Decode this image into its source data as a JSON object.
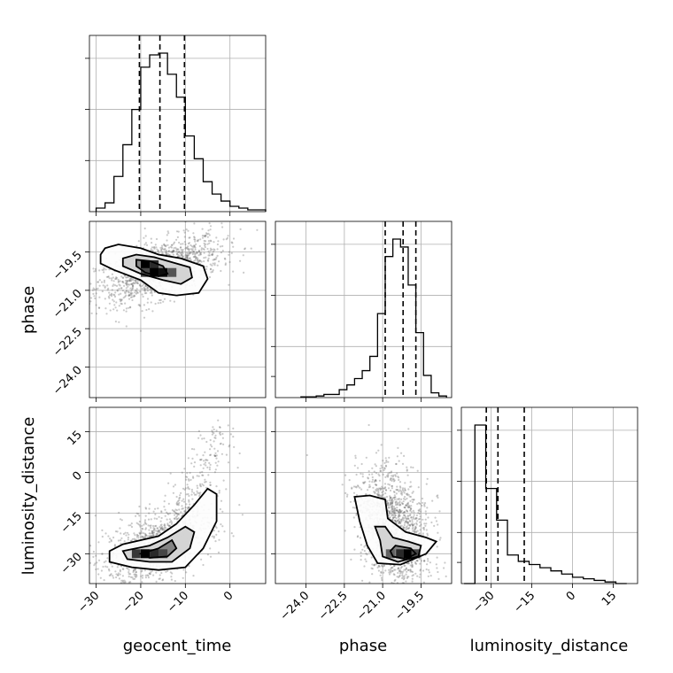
{
  "chart_data": {
    "type": "corner",
    "parameters": [
      "geocent_time",
      "phase",
      "luminosity_distance"
    ],
    "axes": {
      "geocent_time": {
        "range": [
          -31.5,
          8
        ],
        "ticks": [
          -30,
          -20,
          -10,
          0
        ],
        "tick_labels": [
          "−30",
          "−20",
          "−10",
          "0"
        ]
      },
      "phase": {
        "range": [
          -25.2,
          -18.3
        ],
        "ticks": [
          -24.0,
          -22.5,
          -21.0,
          -19.5
        ],
        "tick_labels": [
          "−24.0",
          "−22.5",
          "−21.0",
          "−19.5"
        ]
      },
      "luminosity_distance": {
        "range": [
          -41,
          24
        ],
        "ticks": [
          -30,
          -15,
          0,
          15
        ],
        "tick_labels": [
          "−30",
          "−15",
          "0",
          "15"
        ]
      }
    },
    "grid": true,
    "histograms": [
      {
        "param": "geocent_time",
        "bin_edges": [
          -30,
          -28,
          -26,
          -24,
          -22,
          -20,
          -18,
          -16,
          -14,
          -12,
          -10,
          -8,
          -6,
          -4,
          -2,
          0,
          2,
          4,
          6,
          8
        ],
        "counts": [
          2,
          5,
          20,
          38,
          58,
          82,
          89,
          90,
          78,
          65,
          43,
          30,
          17,
          10,
          6,
          3,
          2,
          1,
          1
        ],
        "quantiles": [
          -20.3,
          -15.7,
          -10.2
        ]
      },
      {
        "param": "phase",
        "bin_edges": [
          -24.2,
          -23.9,
          -23.6,
          -23.3,
          -23.0,
          -22.7,
          -22.4,
          -22.1,
          -21.8,
          -21.5,
          -21.2,
          -20.9,
          -20.6,
          -20.3,
          -20.0,
          -19.7,
          -19.4,
          -19.1,
          -18.8,
          -18.5
        ],
        "counts": [
          0.5,
          0.5,
          1,
          2,
          2,
          5,
          8,
          12,
          17,
          26,
          53,
          89,
          100,
          95,
          71,
          41,
          14,
          3,
          1
        ],
        "quantiles": [
          -20.9,
          -20.2,
          -19.7
        ]
      },
      {
        "param": "luminosity_distance",
        "bin_edges": [
          -40,
          -36,
          -32,
          -28,
          -24,
          -20,
          -16,
          -12,
          -8,
          -4,
          0,
          4,
          8,
          12,
          16,
          20
        ],
        "counts": [
          0,
          100,
          60,
          40,
          18,
          14,
          12,
          10,
          8,
          6,
          4,
          3,
          2,
          1,
          0
        ],
        "quantiles": [
          -31.8,
          -27.5,
          -17.8
        ]
      }
    ],
    "pairs": [
      {
        "x": "geocent_time",
        "y": "phase",
        "cloud": {
          "center": [
            -16,
            -20.2
          ],
          "sigma": [
            7,
            0.65
          ],
          "corr": 0.55,
          "n": 1400
        },
        "levels": [
          [
            [
              -29,
              -19.6
            ],
            [
              -28,
              -19.35
            ],
            [
              -25,
              -19.2
            ],
            [
              -20,
              -19.35
            ],
            [
              -16,
              -19.6
            ],
            [
              -11,
              -19.75
            ],
            [
              -6,
              -20.05
            ],
            [
              -5,
              -20.55
            ],
            [
              -7,
              -21.1
            ],
            [
              -12,
              -21.2
            ],
            [
              -16,
              -21.1
            ],
            [
              -20,
              -20.6
            ],
            [
              -26,
              -20.2
            ],
            [
              -29,
              -19.95
            ]
          ],
          [
            [
              -24,
              -19.75
            ],
            [
              -21,
              -19.6
            ],
            [
              -17,
              -19.7
            ],
            [
              -13,
              -19.9
            ],
            [
              -9,
              -20.1
            ],
            [
              -8.5,
              -20.5
            ],
            [
              -11,
              -20.75
            ],
            [
              -15,
              -20.6
            ],
            [
              -20,
              -20.35
            ],
            [
              -24,
              -20.05
            ]
          ],
          [
            [
              -21,
              -19.8
            ],
            [
              -18,
              -19.85
            ],
            [
              -15,
              -20.05
            ],
            [
              -14,
              -20.35
            ],
            [
              -16,
              -20.45
            ],
            [
              -19,
              -20.3
            ],
            [
              -21,
              -20.05
            ]
          ]
        ],
        "hot_bins": [
          [
            -19,
            -20.0,
            1
          ],
          [
            -17,
            -20.0,
            0.7
          ],
          [
            -17,
            -20.3,
            1
          ],
          [
            -15,
            -20.3,
            0.9
          ],
          [
            -19,
            -20.3,
            0.5
          ],
          [
            -13,
            -20.3,
            0.4
          ]
        ]
      },
      {
        "x": "geocent_time",
        "y": "luminosity_distance",
        "cloud": {
          "center": [
            -16,
            -27
          ],
          "sigma": [
            6,
            7
          ],
          "corr": 0.5,
          "n": 1300,
          "tail": [
            [
              -12,
              -20
            ],
            [
              -2,
              15
            ]
          ]
        },
        "levels": [
          [
            [
              -27,
              -29
            ],
            [
              -24,
              -26.5
            ],
            [
              -16,
              -23.5
            ],
            [
              -12,
              -19
            ],
            [
              -8,
              -12
            ],
            [
              -5,
              -6
            ],
            [
              -3,
              -8
            ],
            [
              -3,
              -18
            ],
            [
              -6,
              -28
            ],
            [
              -10,
              -35
            ],
            [
              -16,
              -36
            ],
            [
              -22,
              -35
            ],
            [
              -27,
              -33
            ]
          ],
          [
            [
              -24,
              -29
            ],
            [
              -18,
              -27
            ],
            [
              -14,
              -24
            ],
            [
              -10,
              -20
            ],
            [
              -8,
              -22
            ],
            [
              -9,
              -28
            ],
            [
              -13,
              -33
            ],
            [
              -18,
              -33
            ],
            [
              -23,
              -32
            ]
          ],
          [
            [
              -20,
              -30
            ],
            [
              -16,
              -28
            ],
            [
              -13,
              -25
            ],
            [
              -12,
              -28
            ],
            [
              -14,
              -31
            ],
            [
              -18,
              -31.5
            ]
          ]
        ],
        "hot_bins": [
          [
            -21,
            -30,
            0.6
          ],
          [
            -19,
            -30,
            1
          ],
          [
            -17,
            -30,
            0.7
          ],
          [
            -15,
            -30,
            0.5
          ]
        ]
      },
      {
        "x": "phase",
        "y": "luminosity_distance",
        "cloud": {
          "center": [
            -20.6,
            -20
          ],
          "sigma": [
            0.7,
            11
          ],
          "corr": -0.35,
          "n": 1500
        },
        "levels": [
          [
            [
              -22.1,
              -9
            ],
            [
              -21.5,
              -8.5
            ],
            [
              -20.9,
              -10
            ],
            [
              -20.8,
              -17
            ],
            [
              -20.1,
              -22
            ],
            [
              -19.3,
              -24
            ],
            [
              -18.9,
              -25.5
            ],
            [
              -19.3,
              -30
            ],
            [
              -20.3,
              -34
            ],
            [
              -21.2,
              -33.5
            ],
            [
              -21.6,
              -27
            ],
            [
              -21.9,
              -18
            ]
          ],
          [
            [
              -21.3,
              -20
            ],
            [
              -20.9,
              -20
            ],
            [
              -20.6,
              -24
            ],
            [
              -20.0,
              -25.5
            ],
            [
              -19.5,
              -27
            ],
            [
              -19.6,
              -31
            ],
            [
              -20.4,
              -33
            ],
            [
              -21.0,
              -31
            ],
            [
              -21.1,
              -25
            ]
          ],
          [
            [
              -20.5,
              -27
            ],
            [
              -19.9,
              -28
            ],
            [
              -19.7,
              -30
            ],
            [
              -20.1,
              -32
            ],
            [
              -20.6,
              -31
            ],
            [
              -20.7,
              -29
            ]
          ]
        ],
        "hot_bins": [
          [
            -20.3,
            -30,
            0.7
          ],
          [
            -20.0,
            -30,
            1
          ],
          [
            -19.7,
            -30,
            0.5
          ],
          [
            -20.7,
            -30,
            0.3
          ]
        ]
      }
    ]
  }
}
